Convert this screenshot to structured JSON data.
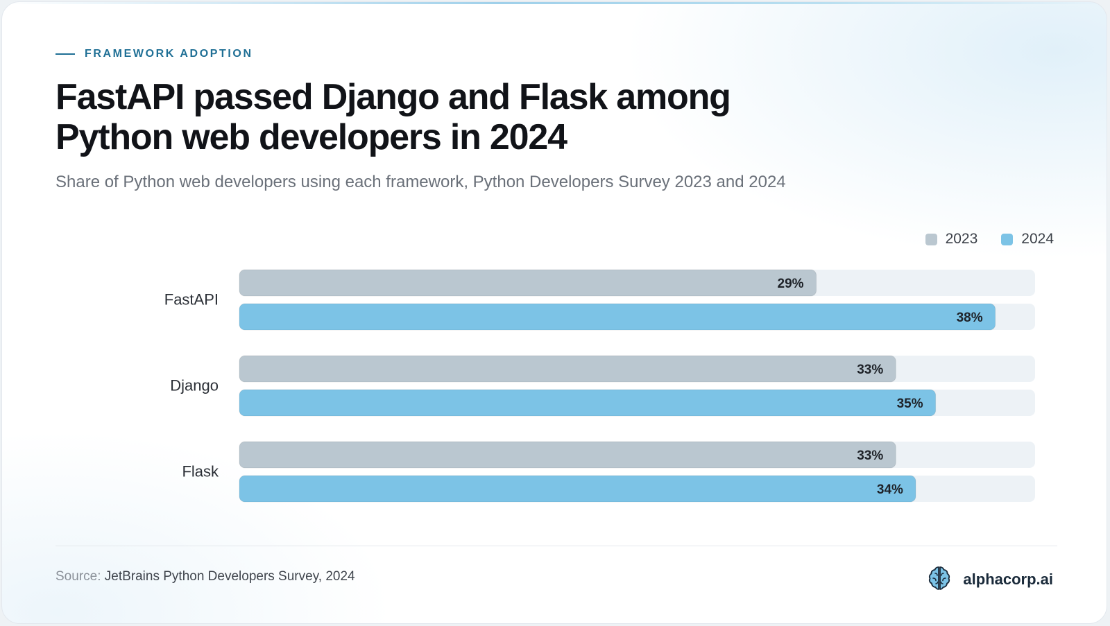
{
  "header": {
    "eyebrow": "FRAMEWORK ADOPTION",
    "title_line1": "FastAPI passed Django and Flask among",
    "title_line2": "Python web developers in 2024",
    "subtitle": "Share of Python web developers using each framework, Python Developers Survey 2023 and 2024"
  },
  "footer": {
    "source_label": "Source:",
    "source_value": "JetBrains Python Developers Survey, 2024",
    "brand": "alphacorp.ai",
    "brand_icon": "brain-icon"
  },
  "colors": {
    "accent": "#1f6f95",
    "series_2023": "#bac7d0",
    "series_2024": "#7cc3e6",
    "track": "#edf2f6"
  },
  "chart_data": {
    "type": "bar",
    "orientation": "horizontal",
    "categories": [
      "FastAPI",
      "Django",
      "Flask"
    ],
    "series": [
      {
        "name": "2023",
        "values": [
          29,
          33,
          33
        ],
        "labels": [
          "29%",
          "33%",
          "33%"
        ]
      },
      {
        "name": "2024",
        "values": [
          38,
          35,
          34
        ],
        "labels": [
          "38%",
          "35%",
          "34%"
        ]
      }
    ],
    "xlim": [
      0,
      40
    ],
    "unit": "%",
    "legend": "top-right",
    "grid": false
  }
}
